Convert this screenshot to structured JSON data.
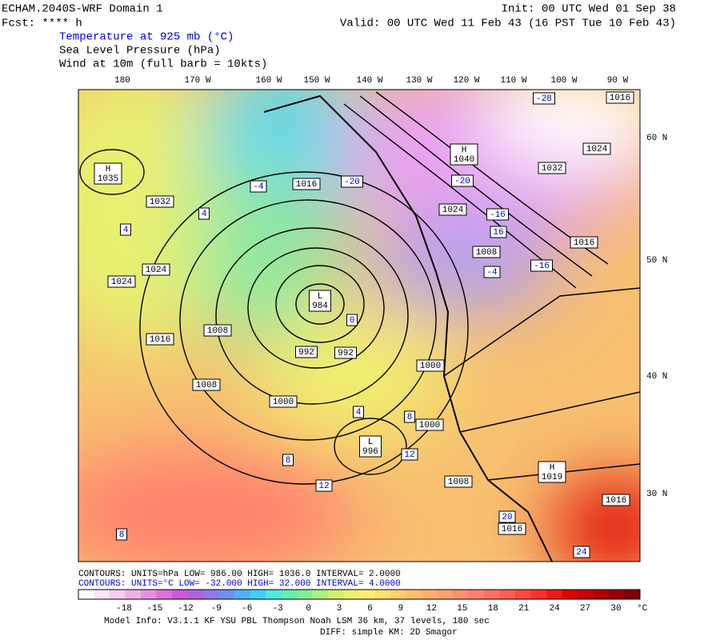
{
  "header": {
    "model": "ECHAM.2040S-WRF Domain 1",
    "init": "Init: 00 UTC Wed 01 Sep 38",
    "fcst": "Fcst: **** h",
    "valid": "Valid: 00 UTC Wed 11 Feb 43 (16 PST Tue 10 Feb 43)",
    "fields": [
      "Temperature at 925 mb (°C)",
      "Sea Level Pressure (hPa)",
      "Wind at 10m (full barb = 10kts)"
    ]
  },
  "map": {
    "longitudes": [
      "180",
      "170 W",
      "160 W",
      "150 W",
      "140 W",
      "130 W",
      "120 W",
      "110 W",
      "100 W",
      "90 W"
    ],
    "latitudes": [
      "60 N",
      "50 N",
      "40 N",
      "30 N"
    ],
    "pressure_labels": [
      "1032",
      "1024",
      "1024",
      "1016",
      "1008",
      "1008",
      "992",
      "992",
      "1000",
      "1000",
      "1000",
      "1008",
      "1016",
      "1016",
      "1016",
      "1008",
      "1024",
      "1032",
      "1024",
      "1016",
      "1016"
    ],
    "centers": [
      {
        "letter": "H",
        "value": "1035"
      },
      {
        "letter": "L",
        "value": "984"
      },
      {
        "letter": "L",
        "value": "996"
      },
      {
        "letter": "H",
        "value": "1019"
      },
      {
        "letter": "H",
        "value": "1040"
      }
    ],
    "temperature_labels": [
      "-4",
      "4",
      "4",
      "0",
      "4",
      "8",
      "8",
      "12",
      "12",
      "16",
      "20",
      "24",
      "-4",
      "-20",
      "-16",
      "-16",
      "-28",
      "-20",
      "8"
    ]
  },
  "contours": {
    "pressure": "CONTOURS:  UNITS=hPa  LOW=  986.00      HIGH=  1036.0      INTERVAL=   2.0000",
    "temperature": "CONTOURS:  UNITS=°C  LOW=  -32.000    HIGH=  32.000     INTERVAL=   4.0000"
  },
  "colorbar": {
    "labels": [
      "-18",
      "-15",
      "-12",
      "-9",
      "-6",
      "-3",
      "0",
      "3",
      "6",
      "9",
      "12",
      "15",
      "18",
      "21",
      "24",
      "27",
      "30"
    ],
    "unit": "°C",
    "colors": [
      "#ffffff",
      "#fbe7f6",
      "#f5cdef",
      "#f0b0e8",
      "#e890e0",
      "#df70d8",
      "#d058d8",
      "#b060e0",
      "#8f78e8",
      "#6e90f0",
      "#50b0f8",
      "#40d0f8",
      "#50e8e0",
      "#60f0b0",
      "#80f090",
      "#a8f080",
      "#d0f070",
      "#f0f070",
      "#fff070",
      "#ffe070",
      "#ffd070",
      "#ffc070",
      "#ffb070",
      "#ffa070",
      "#ff9070",
      "#ff8070",
      "#ff7060",
      "#ff6050",
      "#ff4840",
      "#ff3030",
      "#f01818",
      "#e00000",
      "#c80000",
      "#b00000",
      "#980000",
      "#800000"
    ]
  },
  "footer": {
    "model_info": "Model Info: V3.1.1   KF      YSU PBL   Thompson     Noah LSM  36 km,    37 levels,  180 sec",
    "diff": "DIFF: simple KM: 2D Smagor"
  }
}
